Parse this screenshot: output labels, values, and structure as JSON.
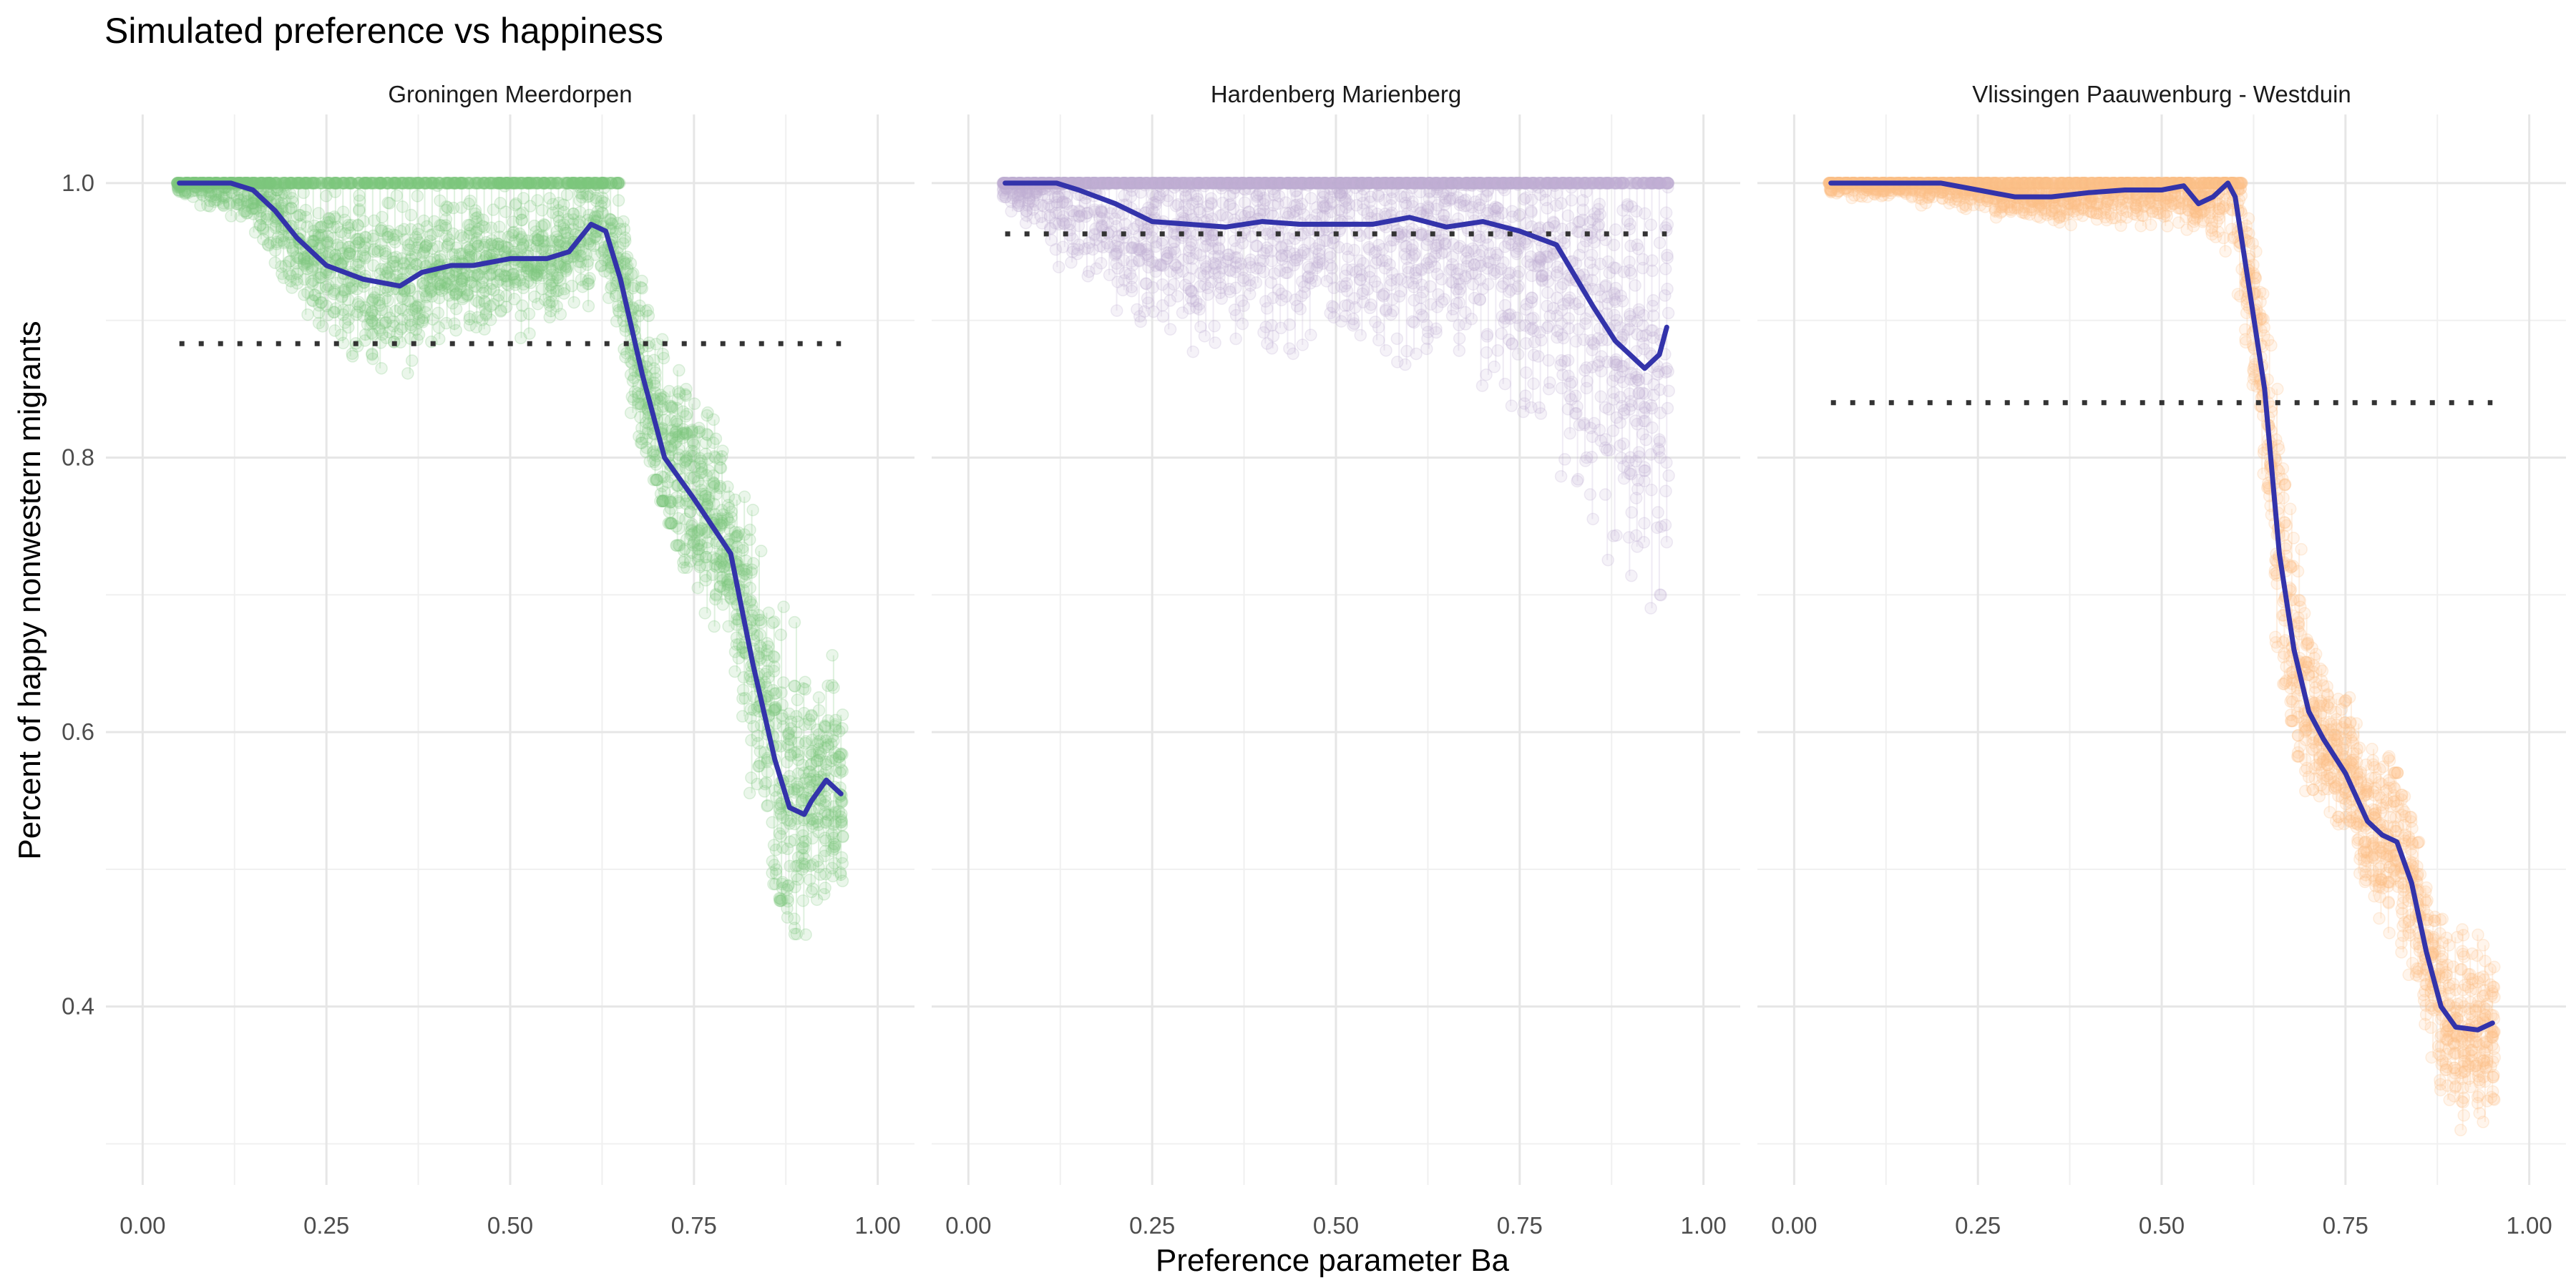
{
  "chart_data": {
    "type": "scatter",
    "title": "Simulated preference vs happiness",
    "xlabel": "Preference parameter Ba",
    "ylabel": "Percent of happy nonwestern migrants",
    "xlim": [
      -0.05,
      1.05
    ],
    "ylim": [
      0.27,
      1.05
    ],
    "x_ticks": [
      "0.00",
      "0.25",
      "0.50",
      "0.75",
      "1.00"
    ],
    "y_ticks": [
      "0.4",
      "0.6",
      "0.8",
      "1.0"
    ],
    "grid": true,
    "legend": "none",
    "smooth_color": "#3333aa",
    "reference_color": "#333333",
    "panels": [
      {
        "name": "Groningen Meerdorpen",
        "point_color": "#7fc97f",
        "reference_y": 0.883,
        "smooth": {
          "x": [
            0.05,
            0.12,
            0.15,
            0.18,
            0.21,
            0.25,
            0.3,
            0.35,
            0.38,
            0.42,
            0.45,
            0.5,
            0.55,
            0.58,
            0.61,
            0.63,
            0.65,
            0.68,
            0.71,
            0.75,
            0.8,
            0.83,
            0.86,
            0.88,
            0.9,
            0.91,
            0.93,
            0.95
          ],
          "y": [
            1.0,
            1.0,
            0.995,
            0.98,
            0.96,
            0.94,
            0.93,
            0.925,
            0.935,
            0.94,
            0.94,
            0.945,
            0.945,
            0.95,
            0.97,
            0.965,
            0.93,
            0.86,
            0.8,
            0.77,
            0.73,
            0.65,
            0.58,
            0.545,
            0.54,
            0.55,
            0.565,
            0.555
          ]
        },
        "range": {
          "x": [
            0.05,
            0.15,
            0.2,
            0.25,
            0.3,
            0.35,
            0.4,
            0.45,
            0.5,
            0.55,
            0.6,
            0.65,
            0.67,
            0.7,
            0.75,
            0.8,
            0.85,
            0.9,
            0.95
          ],
          "lo": [
            0.99,
            0.96,
            0.9,
            0.87,
            0.85,
            0.84,
            0.86,
            0.87,
            0.88,
            0.88,
            0.89,
            0.9,
            0.82,
            0.78,
            0.7,
            0.63,
            0.5,
            0.44,
            0.45
          ],
          "hi": [
            1.0,
            1.0,
            1.0,
            1.0,
            1.0,
            1.0,
            1.0,
            1.0,
            1.0,
            1.0,
            1.0,
            1.0,
            0.98,
            0.92,
            0.87,
            0.82,
            0.75,
            0.68,
            0.65
          ]
        }
      },
      {
        "name": "Hardenberg Marienberg",
        "point_color": "#beaed4",
        "reference_y": 0.963,
        "smooth": {
          "x": [
            0.05,
            0.12,
            0.15,
            0.2,
            0.25,
            0.3,
            0.35,
            0.4,
            0.45,
            0.5,
            0.55,
            0.6,
            0.65,
            0.7,
            0.75,
            0.8,
            0.85,
            0.88,
            0.9,
            0.92,
            0.94,
            0.95
          ],
          "y": [
            1.0,
            1.0,
            0.995,
            0.985,
            0.972,
            0.97,
            0.968,
            0.972,
            0.97,
            0.97,
            0.97,
            0.975,
            0.968,
            0.972,
            0.965,
            0.955,
            0.91,
            0.885,
            0.875,
            0.865,
            0.875,
            0.895
          ]
        },
        "range": {
          "x": [
            0.05,
            0.15,
            0.25,
            0.35,
            0.45,
            0.55,
            0.65,
            0.75,
            0.8,
            0.85,
            0.9,
            0.95
          ],
          "lo": [
            0.98,
            0.9,
            0.86,
            0.85,
            0.85,
            0.84,
            0.84,
            0.82,
            0.77,
            0.72,
            0.66,
            0.62
          ],
          "hi": [
            1.0,
            1.0,
            1.0,
            1.0,
            1.0,
            1.0,
            1.0,
            1.0,
            1.0,
            1.0,
            1.0,
            1.0
          ]
        }
      },
      {
        "name": "Vlissingen Paauwenburg - Westduin",
        "point_color": "#fdc086",
        "reference_y": 0.84,
        "smooth": {
          "x": [
            0.05,
            0.2,
            0.25,
            0.3,
            0.35,
            0.4,
            0.45,
            0.5,
            0.53,
            0.55,
            0.57,
            0.59,
            0.6,
            0.62,
            0.64,
            0.66,
            0.68,
            0.7,
            0.72,
            0.75,
            0.78,
            0.8,
            0.82,
            0.84,
            0.86,
            0.88,
            0.9,
            0.93,
            0.95
          ],
          "y": [
            1.0,
            1.0,
            0.995,
            0.99,
            0.99,
            0.993,
            0.995,
            0.995,
            0.998,
            0.985,
            0.99,
            1.0,
            0.99,
            0.92,
            0.85,
            0.73,
            0.66,
            0.615,
            0.595,
            0.57,
            0.535,
            0.525,
            0.52,
            0.49,
            0.44,
            0.4,
            0.385,
            0.383,
            0.388
          ]
        },
        "range": {
          "x": [
            0.05,
            0.3,
            0.55,
            0.6,
            0.63,
            0.65,
            0.68,
            0.7,
            0.75,
            0.8,
            0.85,
            0.9,
            0.95
          ],
          "lo": [
            0.99,
            0.97,
            0.96,
            0.92,
            0.8,
            0.68,
            0.6,
            0.55,
            0.5,
            0.45,
            0.38,
            0.31,
            0.31
          ],
          "hi": [
            1.0,
            1.0,
            1.0,
            1.0,
            0.98,
            0.9,
            0.78,
            0.7,
            0.63,
            0.6,
            0.52,
            0.48,
            0.46
          ]
        }
      }
    ]
  }
}
